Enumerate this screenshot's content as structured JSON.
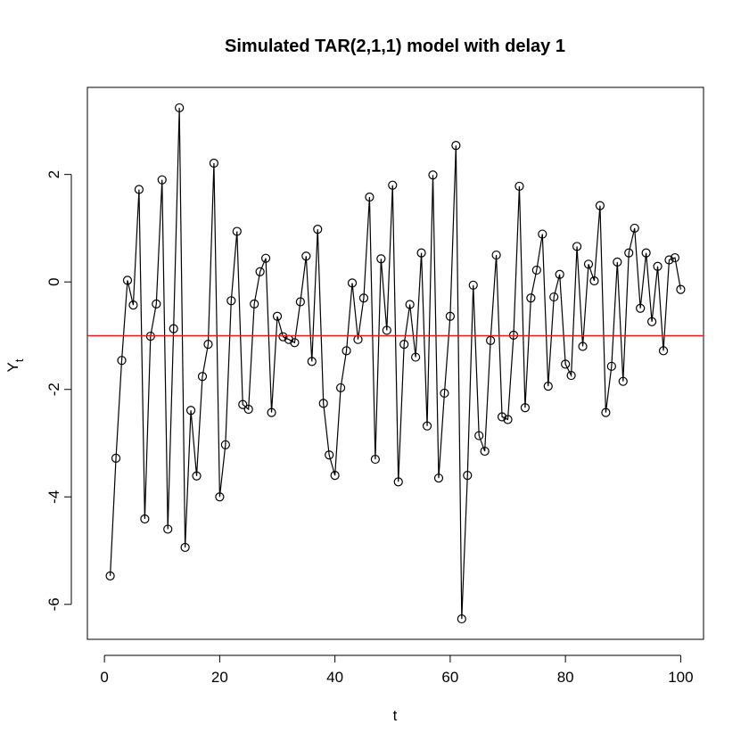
{
  "chart_data": {
    "type": "line",
    "title": "Simulated TAR(2,1,1) model with delay 1",
    "xlabel": "t",
    "ylabel_base": "Y",
    "ylabel_sub": "t",
    "xlim": [
      1,
      100
    ],
    "ylim": [
      -6.27,
      3.24
    ],
    "xticks": [
      0,
      20,
      40,
      60,
      80,
      100
    ],
    "yticks": [
      -6,
      -4,
      -2,
      0,
      2
    ],
    "grid": false,
    "markers": "open-circle",
    "series": [
      {
        "x": [
          1,
          2,
          3,
          4,
          5,
          6,
          7,
          8,
          9,
          10,
          11,
          12,
          13,
          14,
          15,
          16,
          17,
          18,
          19,
          20,
          21,
          22,
          23,
          24,
          25,
          26,
          27,
          28,
          29,
          30,
          31,
          32,
          33,
          34,
          35,
          36,
          37,
          38,
          39,
          40,
          41,
          42,
          43,
          44,
          45,
          46,
          47,
          48,
          49,
          50,
          51,
          52,
          53,
          54,
          55,
          56,
          57,
          58,
          59,
          60,
          61,
          62,
          63,
          64,
          65,
          66,
          67,
          68,
          69,
          70,
          71,
          72,
          73,
          74,
          75,
          76,
          77,
          78,
          79,
          80,
          81,
          82,
          83,
          84,
          85,
          86,
          87,
          88,
          89,
          90,
          91,
          92,
          93,
          94,
          95,
          96,
          97,
          98,
          99,
          100
        ],
        "values": [
          -5.47,
          -3.28,
          -1.46,
          0.03,
          -0.43,
          1.72,
          -4.41,
          -1.01,
          -0.41,
          1.9,
          -4.6,
          -0.87,
          3.24,
          -4.94,
          -2.39,
          -3.61,
          -1.76,
          -1.16,
          2.21,
          -4.0,
          -3.03,
          -0.35,
          0.94,
          -2.28,
          -2.37,
          -0.41,
          0.19,
          0.44,
          -2.43,
          -0.64,
          -1.02,
          -1.07,
          -1.13,
          -0.37,
          0.48,
          -1.48,
          0.98,
          -2.26,
          -3.22,
          -3.6,
          -1.97,
          -1.28,
          -0.02,
          -1.07,
          -0.3,
          1.58,
          -3.3,
          0.43,
          -0.9,
          1.8,
          -3.72,
          -1.16,
          -0.42,
          -1.4,
          0.54,
          -2.68,
          1.99,
          -3.65,
          -2.07,
          -0.64,
          2.54,
          -6.27,
          -3.6,
          -0.06,
          -2.86,
          -3.15,
          -1.09,
          0.5,
          -2.51,
          -2.56,
          -0.99,
          1.78,
          -2.34,
          -0.3,
          0.22,
          0.89,
          -1.94,
          -0.28,
          0.14,
          -1.53,
          -1.74,
          0.66,
          -1.2,
          0.33,
          0.02,
          1.42,
          -2.43,
          -1.57,
          0.37,
          -1.85,
          0.54,
          1.0,
          -0.49,
          0.54,
          -0.74,
          0.29,
          -1.28,
          0.41,
          0.45,
          -0.14
        ]
      }
    ],
    "reference_line": {
      "y": -1.0,
      "color": "#e41a1c"
    },
    "colors": {
      "line": "#000000",
      "markers": "#000000",
      "background": "#ffffff"
    }
  }
}
